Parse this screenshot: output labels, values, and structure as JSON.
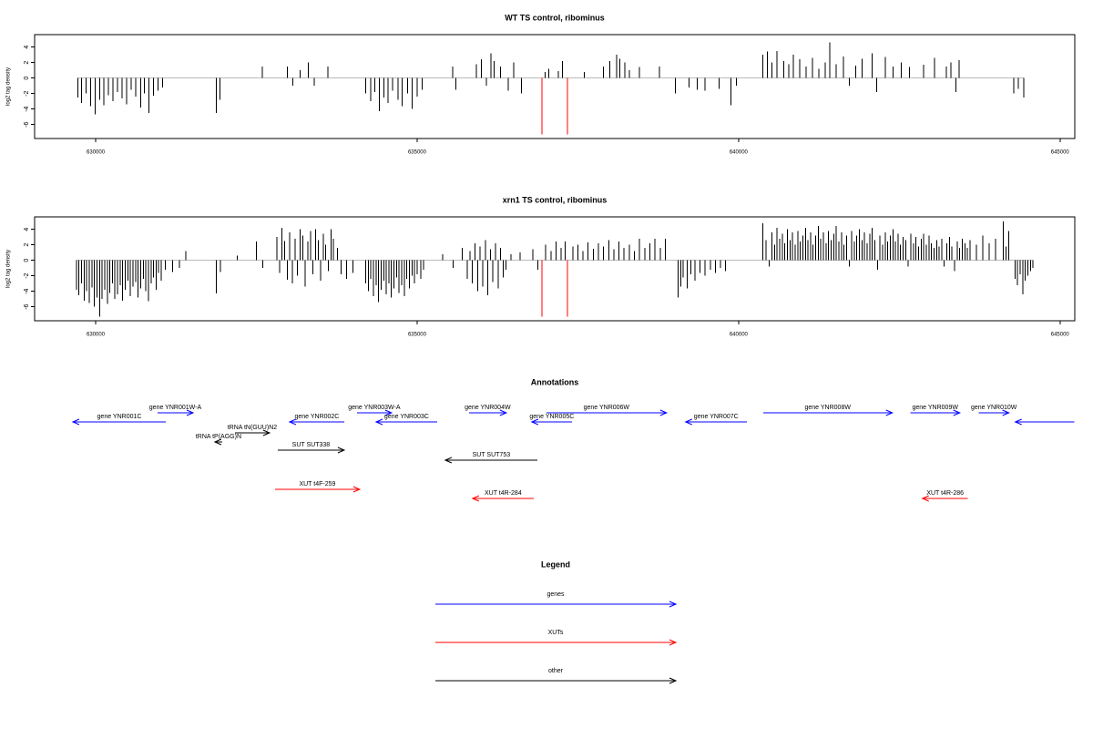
{
  "chart_data": [
    {
      "type": "spike",
      "title": "WT TS control, ribominus",
      "ylabel": "log2 tag density",
      "color": "#000000",
      "xlim": [
        629050,
        645230
      ],
      "ylim": [
        -7.8,
        5.6
      ],
      "xticks": [
        630000,
        635000,
        640000,
        645000
      ],
      "yticks": [
        -6,
        -4,
        -2,
        0,
        2,
        4
      ],
      "x": [
        629720,
        629780,
        629850,
        629920,
        629990,
        630060,
        630130,
        630200,
        630270,
        630340,
        630410,
        630480,
        630550,
        630620,
        630700,
        630760,
        630830,
        630900,
        630970,
        631040,
        631880,
        631930,
        632590,
        632980,
        633070,
        633180,
        633310,
        633400,
        633610,
        634200,
        634280,
        634340,
        634410,
        634480,
        634550,
        634620,
        634700,
        634770,
        634850,
        634920,
        635000,
        635080,
        635550,
        635600,
        635920,
        636000,
        636080,
        636150,
        636200,
        636300,
        636420,
        636500,
        636620,
        636990,
        637050,
        637200,
        637260,
        637600,
        637900,
        638000,
        638100,
        638150,
        638230,
        638300,
        638460,
        638770,
        639020,
        639230,
        639360,
        639480,
        639700,
        639880,
        639970,
        640380,
        640450,
        640520,
        640600,
        640700,
        640780,
        640850,
        640950,
        641050,
        641150,
        641250,
        641350,
        641420,
        641520,
        641630,
        641720,
        641820,
        641920,
        642080,
        642150,
        642280,
        642400,
        642530,
        642660,
        642880,
        643050,
        643230,
        643300,
        643380,
        643430,
        644280,
        644350,
        644440
      ],
      "values": [
        -2.5,
        -3.2,
        -2,
        -3.6,
        -4.7,
        -2.8,
        -3.5,
        -2.2,
        -3,
        -1.8,
        -2.6,
        -3.4,
        -1.5,
        -2.4,
        -3.8,
        -2,
        -4.5,
        -2.3,
        -1.6,
        -1.2,
        -4.5,
        -2.8,
        1.5,
        1.5,
        -1,
        1,
        2,
        -1,
        1.5,
        -2,
        -3,
        -1.8,
        -4.3,
        -2.5,
        -3.2,
        -1.6,
        -2.8,
        -3.6,
        -2,
        -4,
        -2.4,
        -1.5,
        1.5,
        -1.5,
        1.8,
        2.4,
        -1,
        3.2,
        2.2,
        1.5,
        -1.6,
        2,
        -2,
        0.8,
        1.2,
        0.9,
        2.2,
        0.8,
        1.5,
        2.2,
        3,
        2.5,
        2,
        1,
        1.4,
        1.5,
        -2,
        -1.2,
        -1.5,
        -1.6,
        -1.4,
        -3.5,
        -1,
        3,
        3.4,
        2,
        3.5,
        2.2,
        1.8,
        3,
        2.4,
        1.5,
        2.6,
        1.2,
        2,
        4.6,
        1.8,
        2.8,
        -1,
        1.6,
        2.5,
        3.2,
        -1.8,
        2.7,
        1.5,
        2,
        1.4,
        1.7,
        2.6,
        1.5,
        2,
        -1.8,
        2.3,
        -2,
        -1.4,
        -2.5
      ],
      "markers": {
        "x": [
          636940,
          637340
        ],
        "values": [
          -7.3,
          -7.3
        ],
        "color": "#ff0000"
      }
    },
    {
      "type": "spike",
      "title": "xrn1 TS control, ribominus",
      "ylabel": "log2 tag density",
      "color": "#000000",
      "xlim": [
        629050,
        645230
      ],
      "ylim": [
        -7.8,
        5.6
      ],
      "xticks": [
        630000,
        635000,
        640000,
        645000
      ],
      "yticks": [
        -6,
        -4,
        -2,
        0,
        2,
        4
      ],
      "x": [
        629700,
        629740,
        629780,
        629820,
        629860,
        629900,
        629940,
        629980,
        630020,
        630060,
        630100,
        630140,
        630180,
        630220,
        630260,
        630300,
        630340,
        630380,
        630420,
        630460,
        630500,
        630540,
        630580,
        630620,
        630660,
        630700,
        630740,
        630780,
        630820,
        630860,
        630900,
        630940,
        630980,
        631020,
        631080,
        631200,
        631300,
        631400,
        631880,
        631940,
        632200,
        632500,
        632600,
        632820,
        632860,
        632900,
        632940,
        632980,
        633020,
        633060,
        633100,
        633140,
        633180,
        633220,
        633260,
        633300,
        633340,
        633380,
        633420,
        633460,
        633500,
        633540,
        633580,
        633620,
        633660,
        633700,
        633760,
        633820,
        633900,
        634000,
        634200,
        634240,
        634280,
        634320,
        634360,
        634400,
        634440,
        634480,
        634520,
        634560,
        634600,
        634640,
        634680,
        634720,
        634760,
        634800,
        634840,
        634880,
        634920,
        634960,
        635000,
        635060,
        635100,
        635400,
        635560,
        635700,
        635780,
        635820,
        635860,
        635900,
        635940,
        635980,
        636020,
        636060,
        636100,
        636140,
        636180,
        636220,
        636260,
        636300,
        636340,
        636380,
        636460,
        636600,
        636800,
        636880,
        637000,
        637080,
        637160,
        637240,
        637300,
        637420,
        637500,
        637580,
        637660,
        637740,
        637820,
        637900,
        637980,
        638060,
        638140,
        638220,
        638300,
        638380,
        638460,
        638540,
        638620,
        638700,
        638780,
        638860,
        639060,
        639100,
        639140,
        639200,
        639260,
        639320,
        639400,
        639480,
        639560,
        639640,
        639720,
        639800,
        640380,
        640430,
        640480,
        640520,
        640560,
        640600,
        640640,
        640680,
        640720,
        640760,
        640800,
        640840,
        640880,
        640920,
        640960,
        641000,
        641040,
        641080,
        641120,
        641160,
        641200,
        641240,
        641280,
        641320,
        641360,
        641400,
        641440,
        641480,
        641520,
        641560,
        641600,
        641640,
        641680,
        641720,
        641760,
        641800,
        641840,
        641880,
        641920,
        641960,
        642000,
        642040,
        642080,
        642120,
        642160,
        642200,
        642240,
        642280,
        642320,
        642360,
        642400,
        642440,
        642480,
        642520,
        642560,
        642600,
        642640,
        642680,
        642720,
        642760,
        642800,
        642840,
        642880,
        642920,
        642960,
        643000,
        643040,
        643080,
        643120,
        643160,
        643200,
        643240,
        643280,
        643320,
        643360,
        643400,
        643440,
        643480,
        643520,
        643560,
        643600,
        643700,
        643800,
        643900,
        644000,
        644120,
        644160,
        644200,
        644300,
        644340,
        644380,
        644420,
        644460,
        644500,
        644540,
        644580
      ],
      "values": [
        -3.8,
        -4.5,
        -3,
        -5.2,
        -4,
        -5.5,
        -3.5,
        -6,
        -4.8,
        -7.3,
        -5,
        -3.8,
        -5.6,
        -4.2,
        -3,
        -5,
        -4.4,
        -3.2,
        -5.2,
        -3.8,
        -2.6,
        -4.6,
        -3.4,
        -2.8,
        -4.8,
        -3.6,
        -2.4,
        -4,
        -5.3,
        -3,
        -2.2,
        -3.8,
        -1.6,
        -2.6,
        -1.2,
        -1.5,
        -1,
        1.2,
        -4.3,
        -1.5,
        0.6,
        2.4,
        -1,
        3,
        -1.6,
        4.2,
        2.5,
        -2.5,
        3.6,
        -3,
        2.8,
        -2,
        4,
        3.2,
        -3.4,
        2.4,
        3.8,
        -1.8,
        4,
        2.6,
        -2.6,
        3.4,
        2,
        -1.4,
        4,
        2.8,
        1.6,
        -1.8,
        -2.4,
        -1.6,
        -3,
        -4,
        -2.4,
        -4.6,
        -3.2,
        -5.4,
        -3.8,
        -2.6,
        -4.4,
        -3,
        -4.8,
        -3.6,
        -2.2,
        -4.2,
        -3.2,
        -4.6,
        -2.4,
        -3.6,
        -2,
        -3,
        -1.8,
        -2.4,
        -1.2,
        0.8,
        -1,
        1.6,
        -2.4,
        1.2,
        -3,
        2.2,
        -4,
        1.8,
        -3.4,
        2.6,
        -4.5,
        1.4,
        -2.8,
        2.2,
        -3.6,
        1.6,
        -2.2,
        -1.2,
        0.8,
        1,
        1.4,
        -1.2,
        2,
        1.2,
        2.4,
        1.6,
        2.4,
        1.8,
        2,
        1.2,
        2.3,
        1.5,
        2.2,
        1.8,
        2.6,
        1.4,
        2.4,
        1.6,
        2,
        1.2,
        2.8,
        1.6,
        2.2,
        2.8,
        1.6,
        2.8,
        -4.8,
        -3.4,
        -2.2,
        -3.6,
        -1.8,
        -2.6,
        -1.6,
        -2,
        -1.2,
        -1.6,
        -1,
        -1.4,
        4.8,
        2.6,
        -0.8,
        3.6,
        2,
        4.2,
        2.8,
        3.4,
        2.2,
        4,
        2.6,
        3.6,
        2,
        3.8,
        2.4,
        3.2,
        4.2,
        2.6,
        3.6,
        2,
        3.2,
        4.4,
        2.8,
        3.6,
        2.2,
        3.8,
        2.6,
        3.4,
        4.4,
        2.4,
        3.6,
        2,
        3.2,
        -0.8,
        3.8,
        2.4,
        3.2,
        4,
        2.6,
        3.6,
        2.2,
        3.4,
        4.2,
        2.6,
        -1.2,
        3.2,
        2,
        3.6,
        2.4,
        3.2,
        4,
        2.4,
        3.4,
        2,
        3,
        2.6,
        -0.8,
        3.4,
        2.2,
        3,
        1.8,
        2.8,
        3.4,
        2,
        3.2,
        2.2,
        1.6,
        2.6,
        1.8,
        2.8,
        -0.8,
        2.2,
        3,
        1.8,
        -1.4,
        2.4,
        1.6,
        2.8,
        2.2,
        1.6,
        2.6,
        2,
        3.2,
        2.2,
        2.8,
        5,
        1.8,
        3.8,
        -2.4,
        -3.2,
        -1.8,
        -4.4,
        -2.6,
        -2,
        -1.4,
        -1
      ],
      "markers": {
        "x": [
          636940,
          637340
        ],
        "values": [
          -7.3,
          -7.3
        ],
        "color": "#ff0000"
      }
    }
  ],
  "annotations": {
    "title": "Annotations",
    "items": [
      {
        "label": "gene YNR001C",
        "start": 629645,
        "end": 631090,
        "strand": "-",
        "color": "#0000ff"
      },
      {
        "label": "gene YNR001W-A",
        "start": 630962,
        "end": 631515,
        "strand": "+",
        "color": "#0000ff"
      },
      {
        "label": "gene YNR002C",
        "start": 633016,
        "end": 633866,
        "strand": "-",
        "color": "#0000ff"
      },
      {
        "label": "gene YNR003W-A",
        "start": 634064,
        "end": 634602,
        "strand": "+",
        "color": "#0000ff"
      },
      {
        "label": "gene YNR003C",
        "start": 634362,
        "end": 635310,
        "strand": "-",
        "color": "#0000ff"
      },
      {
        "label": "gene YNR004W",
        "start": 635806,
        "end": 636387,
        "strand": "+",
        "color": "#0000ff"
      },
      {
        "label": "gene YNR005C",
        "start": 636784,
        "end": 637407,
        "strand": "-",
        "color": "#0000ff"
      },
      {
        "label": "gene YNR006W",
        "start": 637010,
        "end": 638880,
        "strand": "+",
        "color": "#0000ff"
      },
      {
        "label": "gene YNR007C",
        "start": 639177,
        "end": 640126,
        "strand": "-",
        "color": "#0000ff"
      },
      {
        "label": "gene YNR008W",
        "start": 640381,
        "end": 642392,
        "strand": "+",
        "color": "#0000ff"
      },
      {
        "label": "gene YNR009W",
        "start": 642676,
        "end": 643441,
        "strand": "+",
        "color": "#0000ff"
      },
      {
        "label": "gene YNR010W",
        "start": 643738,
        "end": 644205,
        "strand": "+",
        "color": "#0000ff"
      },
      {
        "start": 644305,
        "end": 645225,
        "strand": "-",
        "color": "#0000ff"
      },
      {
        "label": "tRNA tN(GUU)N2",
        "start": 632166,
        "end": 632704,
        "strand": "+",
        "color": "#000000"
      },
      {
        "label": "tRNA tP(AGG)N",
        "start": 631854,
        "end": 631968,
        "strand": "-",
        "color": "#000000"
      },
      {
        "label": "SUT SUT338",
        "start": 632832,
        "end": 633866,
        "strand": "+",
        "color": "#000000"
      },
      {
        "label": "SUT SUT753",
        "start": 635438,
        "end": 636869,
        "strand": "-",
        "color": "#000000"
      },
      {
        "label": "XUT t4F-259",
        "start": 632789,
        "end": 634107,
        "strand": "+",
        "color": "#ff0000"
      },
      {
        "label": "XUT t4R-284",
        "start": 635863,
        "end": 636812,
        "strand": "-",
        "color": "#ff0000"
      },
      {
        "label": "XUT t4R-286",
        "start": 642860,
        "end": 643568,
        "strand": "-",
        "color": "#ff0000"
      }
    ]
  },
  "legend": {
    "title": "Legend",
    "entries": [
      {
        "label": "genes",
        "color": "#0000ff"
      },
      {
        "label": "XUTs",
        "color": "#ff0000"
      },
      {
        "label": "other",
        "color": "#000000"
      }
    ]
  }
}
